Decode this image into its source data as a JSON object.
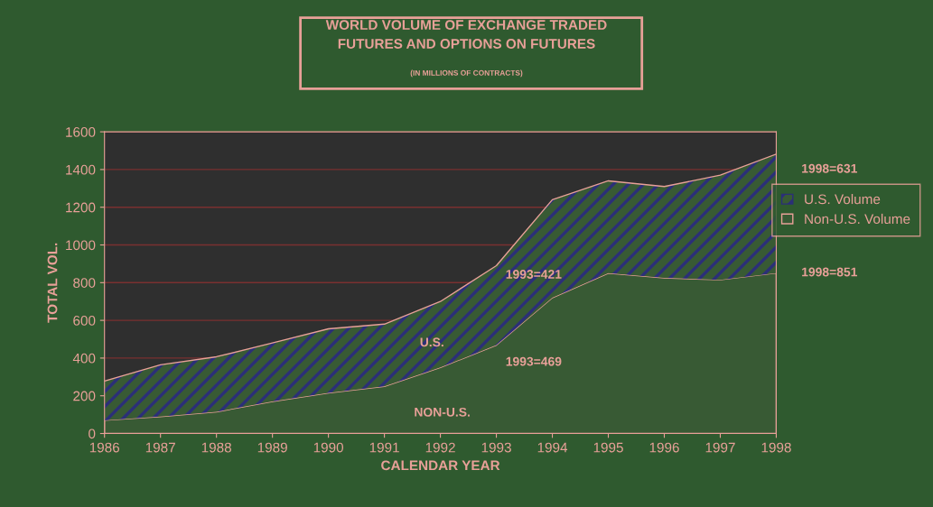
{
  "chart_data": {
    "type": "area",
    "stacked": true,
    "title": "WORLD VOLUME OF EXCHANGE TRADED\nFUTURES AND OPTIONS ON FUTURES",
    "subtitle": "(IN MILLIONS OF CONTRACTS)",
    "xlabel": "CALENDAR YEAR",
    "ylabel": "TOTAL VOL.",
    "x": [
      1986,
      1987,
      1988,
      1989,
      1990,
      1991,
      1992,
      1993,
      1994,
      1995,
      1996,
      1997,
      1998
    ],
    "series": [
      {
        "name": "Non-U.S. Volume",
        "color": "#385a34",
        "values": [
          70,
          90,
          115,
          170,
          215,
          250,
          350,
          469,
          720,
          850,
          825,
          815,
          851
        ]
      },
      {
        "name": "U.S. Volume",
        "color": "#2b2f78",
        "values": [
          208,
          274,
          292,
          310,
          340,
          330,
          350,
          421,
          520,
          490,
          485,
          555,
          631
        ]
      }
    ],
    "xlim": [
      1986,
      1998
    ],
    "xticks": [
      1986,
      1987,
      1988,
      1989,
      1990,
      1991,
      1992,
      1993,
      1994,
      1995,
      1996,
      1997,
      1998
    ],
    "ylim": [
      0,
      1600
    ],
    "yticks": [
      0,
      200,
      400,
      600,
      800,
      1000,
      1200,
      1400,
      1600
    ],
    "grid": "y",
    "legend": "right",
    "annotations": [
      {
        "text": "1998=631",
        "x": 1998,
        "y": 1400
      },
      {
        "text": "1998=851",
        "x": 1998,
        "y": 851
      },
      "1993=421",
      "1993=469",
      "U.S.",
      "NON-U.S."
    ]
  }
}
